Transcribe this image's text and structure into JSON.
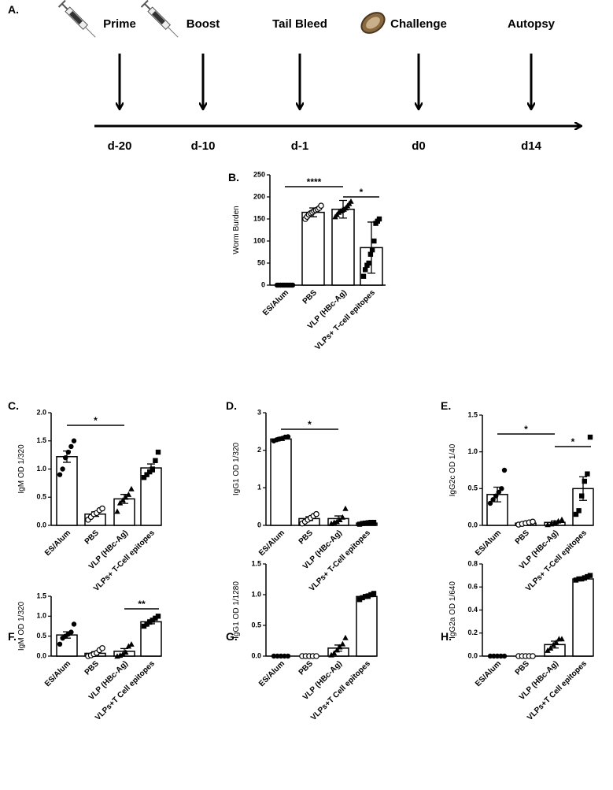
{
  "timeline": {
    "panel": "A.",
    "events": [
      {
        "label": "Prime",
        "day": "d-20"
      },
      {
        "label": "Boost",
        "day": "d-10"
      },
      {
        "label": "Tail Bleed",
        "day": "d-1"
      },
      {
        "label": "Challenge",
        "day": "d0"
      },
      {
        "label": "Autopsy",
        "day": "d14"
      }
    ]
  },
  "chart_data": [
    {
      "type": "bar",
      "panel": "B.",
      "ylabel": "Worm Burden",
      "categories": [
        "ES/Alum",
        "PBS",
        "VLP (HBc-Ag)",
        "VLPs+ T-cell epitopes"
      ],
      "values": [
        0,
        165,
        172,
        85
      ],
      "errors": [
        0,
        10,
        20,
        58
      ],
      "points": [
        [
          0,
          0,
          0,
          0,
          0,
          0,
          0,
          0,
          0,
          0
        ],
        [
          150,
          155,
          160,
          163,
          165,
          168,
          170,
          172,
          175,
          180
        ],
        [
          155,
          160,
          165,
          168,
          170,
          172,
          175,
          180,
          185,
          190
        ],
        [
          20,
          35,
          45,
          50,
          70,
          80,
          100,
          140,
          145,
          150
        ]
      ],
      "ylim": [
        0,
        250
      ],
      "yticks": [
        0,
        50,
        100,
        150,
        200,
        250
      ],
      "annotations": [
        {
          "label": "****",
          "from": 0,
          "to": 2
        },
        {
          "label": "*",
          "from": 2,
          "to": 3
        }
      ]
    },
    {
      "type": "bar",
      "panel": "C.",
      "ylabel": "IgM OD 1/320",
      "categories": [
        "ES/Alum",
        "PBS",
        "VLP (HBc-Ag)",
        "VLPs+ T-Cell epitopes"
      ],
      "values": [
        1.22,
        0.2,
        0.47,
        1.02
      ],
      "errors": [
        0.1,
        0.04,
        0.08,
        0.07
      ],
      "points": [
        [
          0.9,
          1.0,
          1.2,
          1.3,
          1.4,
          1.5
        ],
        [
          0.1,
          0.15,
          0.2,
          0.22,
          0.27,
          0.3
        ],
        [
          0.25,
          0.4,
          0.45,
          0.5,
          0.55,
          0.65
        ],
        [
          0.85,
          0.9,
          0.95,
          1.0,
          1.15,
          1.3
        ]
      ],
      "ylim": [
        0,
        2
      ],
      "yticks": [
        {
          "value": 0,
          "label": "0.0"
        },
        {
          "value": 0.5,
          "label": "0.5"
        },
        {
          "value": 1,
          "label": "1.0"
        },
        {
          "value": 1.5,
          "label": "1.5"
        },
        {
          "value": 2,
          "label": "2.0"
        }
      ],
      "annotations": [
        {
          "label": "*",
          "from": 0,
          "to": 2
        }
      ]
    },
    {
      "type": "bar",
      "panel": "D.",
      "ylabel": "IgG1 OD 1/320",
      "categories": [
        "ES/Alum",
        "PBS",
        "VLP (HBc-Ag)",
        "VLPs+ T-Cell epitopes"
      ],
      "values": [
        2.3,
        0.18,
        0.18,
        0.06
      ],
      "errors": [
        0.04,
        0.05,
        0.07,
        0.01
      ],
      "points": [
        [
          2.25,
          2.28,
          2.3,
          2.32,
          2.35,
          2.36
        ],
        [
          0.05,
          0.1,
          0.15,
          0.2,
          0.25,
          0.3
        ],
        [
          0.05,
          0.08,
          0.1,
          0.15,
          0.22,
          0.45
        ],
        [
          0.03,
          0.05,
          0.06,
          0.07,
          0.08,
          0.08
        ]
      ],
      "ylim": [
        0,
        3
      ],
      "yticks": [
        0,
        1,
        2,
        3
      ],
      "annotations": [
        {
          "label": "*",
          "from": 0,
          "to": 2
        }
      ]
    },
    {
      "type": "bar",
      "panel": "E.",
      "ylabel": "IgG2c OD 1/40",
      "categories": [
        "ES/Alum",
        "PBS",
        "VLP (HBc-Ag)",
        "VLPs+ T-Cell epitopes"
      ],
      "values": [
        0.42,
        0.03,
        0.04,
        0.5
      ],
      "errors": [
        0.1,
        0.01,
        0.02,
        0.16
      ],
      "points": [
        [
          0.3,
          0.35,
          0.4,
          0.45,
          0.5,
          0.75
        ],
        [
          0.01,
          0.02,
          0.03,
          0.04,
          0.05
        ],
        [
          0.01,
          0.02,
          0.04,
          0.06,
          0.08
        ],
        [
          0.15,
          0.2,
          0.4,
          0.6,
          0.7,
          1.2
        ]
      ],
      "ylim": [
        0,
        1.5
      ],
      "yticks": [
        {
          "value": 0,
          "label": "0.0"
        },
        {
          "value": 0.5,
          "label": "0.5"
        },
        {
          "value": 1,
          "label": "1.0"
        },
        {
          "value": 1.5,
          "label": "1.5"
        }
      ],
      "annotations": [
        {
          "label": "*",
          "from": 0,
          "to": 2
        },
        {
          "label": "*",
          "from": 2,
          "to": 3
        }
      ]
    },
    {
      "type": "bar",
      "panel": "F.",
      "ylabel": "IgM OD 1/320",
      "categories": [
        "ES/Alum",
        "PBS",
        "VLP (HBc-Ag)",
        "VLPs+T Cell epitopes"
      ],
      "values": [
        0.53,
        0.07,
        0.12,
        0.86
      ],
      "errors": [
        0.08,
        0.04,
        0.07,
        0.05
      ],
      "points": [
        [
          0.3,
          0.45,
          0.5,
          0.55,
          0.6,
          0.8
        ],
        [
          0,
          0.02,
          0.05,
          0.08,
          0.15,
          0.2
        ],
        [
          0,
          0.02,
          0.05,
          0.1,
          0.25,
          0.3
        ],
        [
          0.75,
          0.8,
          0.85,
          0.9,
          0.95,
          1.0
        ]
      ],
      "ylim": [
        0,
        1.5
      ],
      "yticks": [
        {
          "value": 0,
          "label": "0.0"
        },
        {
          "value": 0.5,
          "label": "0.5"
        },
        {
          "value": 1,
          "label": "1.0"
        },
        {
          "value": 1.5,
          "label": "1.5"
        }
      ],
      "annotations": [
        {
          "label": "**",
          "from": 2,
          "to": 3
        }
      ]
    },
    {
      "type": "bar",
      "panel": "G.",
      "ylabel": "IgG1 OD 1/1280",
      "categories": [
        "ES/Alum",
        "PBS",
        "VLP (HBc-Ag)",
        "VLPs+T Cell epitopes"
      ],
      "values": [
        0,
        0,
        0.13,
        0.97
      ],
      "errors": [
        0,
        0,
        0.05,
        0.03
      ],
      "points": [
        [
          0,
          0,
          0,
          0,
          0
        ],
        [
          0,
          0,
          0,
          0,
          0
        ],
        [
          0.02,
          0.05,
          0.1,
          0.15,
          0.2,
          0.3
        ],
        [
          0.92,
          0.95,
          0.97,
          0.98,
          1.0,
          1.02
        ]
      ],
      "ylim": [
        0,
        1.5
      ],
      "yticks": [
        {
          "value": 0,
          "label": "0.0"
        },
        {
          "value": 0.5,
          "label": "0.5"
        },
        {
          "value": 1,
          "label": "1.0"
        },
        {
          "value": 1.5,
          "label": "1.5"
        }
      ],
      "annotations": []
    },
    {
      "type": "bar",
      "panel": "H.",
      "ylabel": "IgG2a OD 1/640",
      "categories": [
        "ES/Alum",
        "PBS",
        "VLP (HBc-Ag)",
        "VLPs+T Cell epitopes"
      ],
      "values": [
        0,
        0,
        0.1,
        0.67
      ],
      "errors": [
        0,
        0,
        0.03,
        0.01
      ],
      "points": [
        [
          0,
          0,
          0,
          0,
          0
        ],
        [
          0,
          0,
          0,
          0,
          0
        ],
        [
          0.05,
          0.07,
          0.1,
          0.12,
          0.15,
          0.15
        ],
        [
          0.66,
          0.67,
          0.67,
          0.68,
          0.69,
          0.7
        ]
      ],
      "ylim": [
        0,
        0.8
      ],
      "yticks": [
        {
          "value": 0,
          "label": "0.0"
        },
        {
          "value": 0.2,
          "label": "0.2"
        },
        {
          "value": 0.4,
          "label": "0.4"
        },
        {
          "value": 0.6,
          "label": "0.6"
        },
        {
          "value": 0.8,
          "label": "0.8"
        }
      ],
      "annotations": []
    }
  ]
}
